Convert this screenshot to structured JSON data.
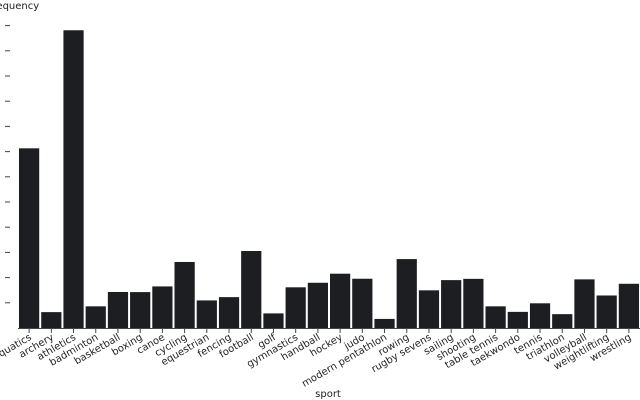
{
  "chart_data": {
    "type": "bar",
    "xlabel": "sport",
    "ylabel": "frequency",
    "categories": [
      "aquatics",
      "archery",
      "athletics",
      "badminton",
      "basketball",
      "boxing",
      "canoe",
      "cycling",
      "equestrian",
      "fencing",
      "football",
      "golf",
      "gymnastics",
      "handball",
      "hockey",
      "judo",
      "modern pentathlon",
      "rowing",
      "rugby sevens",
      "sailing",
      "shooting",
      "table tennis",
      "taekwondo",
      "tennis",
      "triathlon",
      "volleyball",
      "weightlifting",
      "wrestling"
    ],
    "values": [
      1426,
      126,
      2363,
      172,
      286,
      285,
      330,
      524,
      219,
      245,
      611,
      116,
      323,
      359,
      431,
      391,
      72,
      547,
      299,
      380,
      390,
      172,
      128,
      196,
      110,
      386,
      258,
      351
    ],
    "ylim": [
      0,
      2500
    ],
    "grid": false
  },
  "colors": {
    "bar": "#1c1e22",
    "axis": "#444444"
  }
}
